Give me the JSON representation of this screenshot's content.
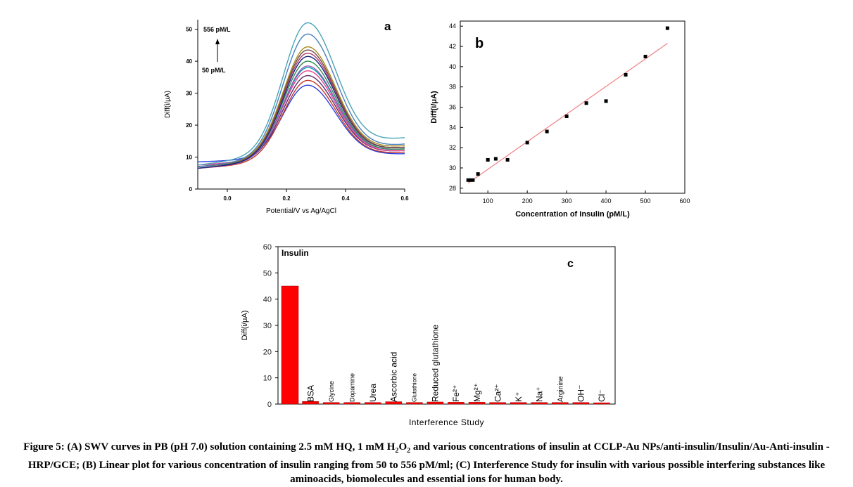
{
  "chart_data": [
    {
      "id": "a",
      "type": "line",
      "panel_letter": "a",
      "xlabel": "Potential/V vs Ag/AgCl",
      "ylabel": "Diff(i/μA)",
      "xlim": [
        -0.1,
        0.6
      ],
      "ylim": [
        0,
        53
      ],
      "xticks": [
        "0.0",
        "0.2",
        "0.4",
        "0.6"
      ],
      "xtick_values": [
        0.0,
        0.2,
        0.4,
        0.6
      ],
      "yticks": [
        "0",
        "10",
        "20",
        "30",
        "40",
        "50"
      ],
      "ytick_values": [
        0,
        10,
        20,
        30,
        40,
        50
      ],
      "annotation_top": "556 pM/L",
      "annotation_bottom": "50 pM/L",
      "peak_potential": 0.27,
      "series": [
        {
          "color": "#2b3fe0",
          "peak": 32.5,
          "start": 8.5,
          "end": 11.0
        },
        {
          "color": "#c0392b",
          "peak": 34.0,
          "start": 6.5,
          "end": 11.5
        },
        {
          "color": "#5b2c6f",
          "peak": 35.5,
          "start": 7.0,
          "end": 12.0
        },
        {
          "color": "#e84393",
          "peak": 37.0,
          "start": 7.5,
          "end": 12.0
        },
        {
          "color": "#00a0b0",
          "peak": 38.0,
          "start": 7.0,
          "end": 12.5
        },
        {
          "color": "#9b59b6",
          "peak": 38.5,
          "start": 6.5,
          "end": 12.5
        },
        {
          "color": "#2e8b57",
          "peak": 40.0,
          "start": 7.0,
          "end": 12.5
        },
        {
          "color": "#1a237e",
          "peak": 41.5,
          "start": 6.5,
          "end": 13.0
        },
        {
          "color": "#b03a6f",
          "peak": 42.5,
          "start": 7.0,
          "end": 13.0
        },
        {
          "color": "#6d4c41",
          "peak": 43.5,
          "start": 7.0,
          "end": 13.0
        },
        {
          "color": "#a6891c",
          "peak": 44.5,
          "start": 7.0,
          "end": 13.5
        },
        {
          "color": "#4b7fbf",
          "peak": 48.5,
          "start": 7.0,
          "end": 14.0
        },
        {
          "color": "#4ba3b8",
          "peak": 52.0,
          "start": 7.5,
          "end": 16.0
        }
      ]
    },
    {
      "id": "b",
      "type": "scatter",
      "panel_letter": "b",
      "xlabel": "Concentration of Insulin (pM/L)",
      "ylabel": "Diff(i/μA)",
      "xlim": [
        30,
        600
      ],
      "ylim": [
        27.5,
        44.5
      ],
      "xticks": [
        "100",
        "200",
        "300",
        "400",
        "500",
        "600"
      ],
      "xtick_values": [
        100,
        200,
        300,
        400,
        500,
        600
      ],
      "yticks": [
        "28",
        "30",
        "32",
        "34",
        "36",
        "38",
        "40",
        "42",
        "44"
      ],
      "ytick_values": [
        28,
        30,
        32,
        34,
        36,
        38,
        40,
        42,
        44
      ],
      "points": [
        {
          "x": 50,
          "y": 28.8
        },
        {
          "x": 55,
          "y": 28.8
        },
        {
          "x": 62,
          "y": 28.8
        },
        {
          "x": 75,
          "y": 29.4
        },
        {
          "x": 100,
          "y": 30.8
        },
        {
          "x": 120,
          "y": 30.9
        },
        {
          "x": 150,
          "y": 30.8
        },
        {
          "x": 200,
          "y": 32.5
        },
        {
          "x": 250,
          "y": 33.6
        },
        {
          "x": 300,
          "y": 35.1
        },
        {
          "x": 350,
          "y": 36.4
        },
        {
          "x": 400,
          "y": 36.6
        },
        {
          "x": 450,
          "y": 39.2
        },
        {
          "x": 500,
          "y": 41.0
        },
        {
          "x": 556,
          "y": 43.8
        }
      ],
      "fit_line": {
        "x": [
          50,
          556
        ],
        "y": [
          28.5,
          42.3
        ],
        "color": "#f08080"
      }
    },
    {
      "id": "c",
      "type": "bar",
      "panel_letter": "c",
      "title": "Insulin",
      "xlabel": "Interference Study",
      "ylabel": "Diff(i/μA)",
      "ylim": [
        0,
        60
      ],
      "yticks": [
        "0",
        "10",
        "20",
        "30",
        "40",
        "50",
        "60"
      ],
      "ytick_values": [
        0,
        10,
        20,
        30,
        40,
        50,
        60
      ],
      "bar_color": "#ff0000",
      "categories": [
        {
          "label": "",
          "size": 12
        },
        {
          "label": "BSA",
          "size": 12
        },
        {
          "label": "Glycine",
          "size": 9
        },
        {
          "label": "Dopamine",
          "size": 9
        },
        {
          "label": "Urea",
          "size": 12
        },
        {
          "label": "Ascorbic acid",
          "size": 12
        },
        {
          "label": "Glutathione",
          "size": 8
        },
        {
          "label": "Reduced glutathione",
          "size": 12
        },
        {
          "label": "Fe²⁺",
          "size": 12
        },
        {
          "label": "Mg²⁺",
          "size": 12
        },
        {
          "label": "Ca²⁺",
          "size": 12
        },
        {
          "label": "K⁺",
          "size": 12
        },
        {
          "label": "Na⁺",
          "size": 12
        },
        {
          "label": "Arginine",
          "size": 10
        },
        {
          "label": "OH⁻",
          "size": 12
        },
        {
          "label": "Cl⁻",
          "size": 12
        }
      ],
      "values": [
        45.0,
        1.0,
        0.6,
        0.6,
        0.6,
        0.9,
        0.6,
        0.8,
        0.7,
        0.7,
        0.6,
        0.6,
        0.6,
        0.6,
        0.6,
        0.5
      ]
    }
  ],
  "caption": {
    "part1": "Figure 5: (A) SWV curves in PB (pH 7.0) solution containing 2.5 mM HQ, 1 mM H",
    "sub1": "2",
    "part2": "O",
    "sub2": "2",
    "part3": " and various concentrations of insulin at CCLP-Au NPs/anti-insulin/Insulin/Au-Anti-insulin -HRP/GCE; (B) Linear plot for various concentration of insulin ranging from 50 to 556 pM/ml; (C) Interference Study for insulin with various possible interfering substances like aminoacids, biomolecules and essential ions for human body."
  }
}
